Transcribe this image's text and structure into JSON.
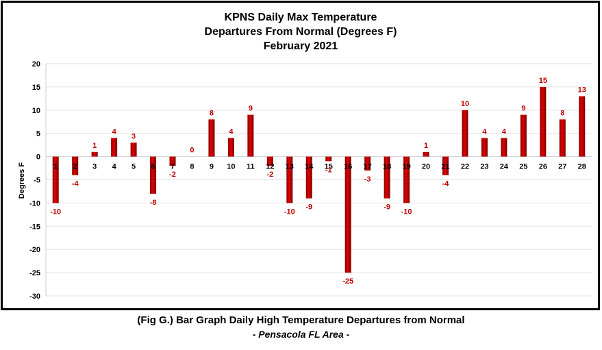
{
  "chart_data": {
    "type": "bar",
    "title_lines": [
      "KPNS Daily Max Temperature",
      "Departures From Normal (Degrees F)",
      "February 2021"
    ],
    "xlabel": "",
    "ylabel": "Degrees F",
    "ylim": [
      -30,
      20
    ],
    "yticks": [
      20,
      15,
      10,
      5,
      0,
      -5,
      -10,
      -15,
      -20,
      -25,
      -30
    ],
    "categories": [
      "1",
      "2",
      "3",
      "4",
      "5",
      "6",
      "7",
      "8",
      "9",
      "10",
      "11",
      "12",
      "13",
      "14",
      "15",
      "16",
      "17",
      "18",
      "19",
      "20",
      "21",
      "22",
      "23",
      "24",
      "25",
      "26",
      "27",
      "28"
    ],
    "values": [
      -10,
      -4,
      1,
      4,
      3,
      -8,
      -2,
      0,
      8,
      4,
      9,
      -2,
      -10,
      -9,
      -1,
      -25,
      -3,
      -9,
      -10,
      1,
      -4,
      10,
      4,
      4,
      9,
      15,
      8,
      13
    ],
    "bar_color": "#cc0000",
    "label_color": "#c00000",
    "grid": true,
    "legend": "none"
  },
  "caption": {
    "line1": "(Fig G.) Bar Graph Daily High Temperature Departures from Normal",
    "line2": "- Pensacola FL Area -"
  }
}
